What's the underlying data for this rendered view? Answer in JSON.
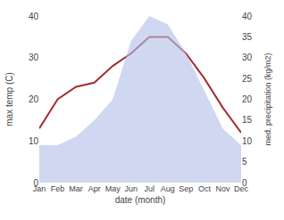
{
  "chart_data": {
    "type": "line",
    "xlabel": "date (month)",
    "ylabel": "max temp (C)",
    "y2label": "med. precipitation (kg/m2)",
    "categories": [
      "Jan",
      "Feb",
      "Mar",
      "Apr",
      "May",
      "Jun",
      "Jul",
      "Aug",
      "Sep",
      "Oct",
      "Nov",
      "Dec"
    ],
    "series": [
      {
        "type": "area",
        "axis": "y2",
        "color": "#b0bce8",
        "values": [
          9,
          9,
          11,
          15,
          20,
          34,
          40,
          38,
          31,
          22,
          13,
          9
        ]
      },
      {
        "type": "line",
        "color": "#a03030",
        "values": [
          13,
          20,
          23,
          24,
          28,
          31,
          35,
          35,
          31,
          25,
          18,
          12
        ]
      }
    ],
    "ylim": [
      0,
      40
    ],
    "yticks": [
      0,
      10,
      20,
      30,
      40
    ],
    "y2lim": [
      0,
      40
    ],
    "y2ticks": [
      0,
      5,
      10,
      15,
      20,
      25,
      30,
      35,
      40
    ],
    "grid": false
  }
}
